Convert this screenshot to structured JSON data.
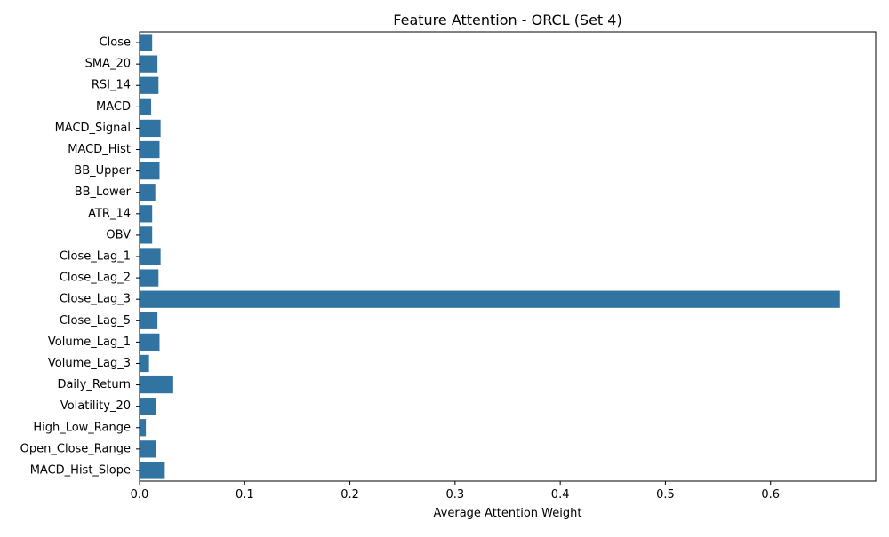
{
  "chart_data": {
    "type": "bar",
    "orientation": "horizontal",
    "title": "Feature Attention - ORCL (Set 4)",
    "xlabel": "Average Attention Weight",
    "ylabel": "",
    "xlim": [
      0,
      0.7
    ],
    "xticks": [
      0.0,
      0.1,
      0.2,
      0.3,
      0.4,
      0.5,
      0.6
    ],
    "xtick_labels": [
      "0.0",
      "0.1",
      "0.2",
      "0.3",
      "0.4",
      "0.5",
      "0.6"
    ],
    "grid": false,
    "bar_color": "#3274a1",
    "categories": [
      "Close",
      "SMA_20",
      "RSI_14",
      "MACD",
      "MACD_Signal",
      "MACD_Hist",
      "BB_Upper",
      "BB_Lower",
      "ATR_14",
      "OBV",
      "Close_Lag_1",
      "Close_Lag_2",
      "Close_Lag_3",
      "Close_Lag_5",
      "Volume_Lag_1",
      "Volume_Lag_3",
      "Daily_Return",
      "Volatility_20",
      "High_Low_Range",
      "Open_Close_Range",
      "MACD_Hist_Slope"
    ],
    "values": [
      0.012,
      0.017,
      0.018,
      0.011,
      0.02,
      0.019,
      0.019,
      0.015,
      0.012,
      0.012,
      0.02,
      0.018,
      0.666,
      0.017,
      0.019,
      0.009,
      0.032,
      0.016,
      0.006,
      0.016,
      0.024
    ]
  }
}
